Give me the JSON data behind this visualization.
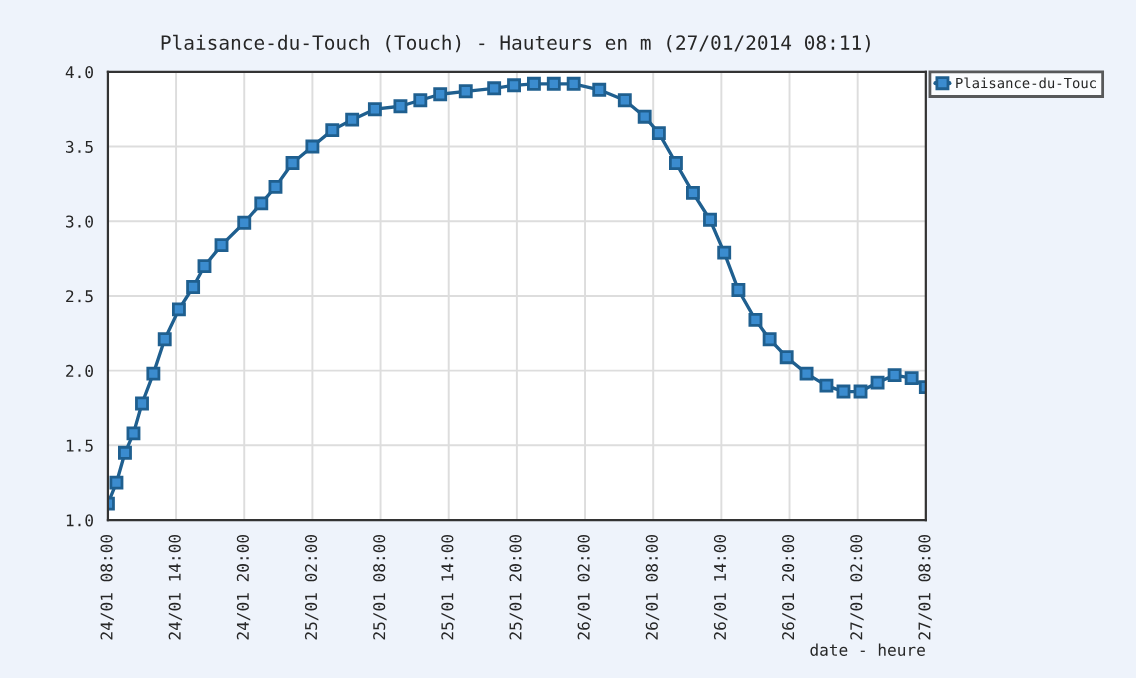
{
  "chart_data": {
    "type": "line",
    "title": "Plaisance-du-Touch (Touch) - Hauteurs en m (27/01/2014 08:11)",
    "xlabel": "date - heure",
    "x": [
      "2014-01-24T08:00",
      "2014-01-24T08:45",
      "2014-01-24T09:30",
      "2014-01-24T10:15",
      "2014-01-24T11:00",
      "2014-01-24T12:00",
      "2014-01-24T13:00",
      "2014-01-24T14:15",
      "2014-01-24T15:30",
      "2014-01-24T16:30",
      "2014-01-24T18:00",
      "2014-01-24T20:00",
      "2014-01-24T21:30",
      "2014-01-24T22:45",
      "2014-01-25T00:15",
      "2014-01-25T02:00",
      "2014-01-25T03:45",
      "2014-01-25T05:30",
      "2014-01-25T07:30",
      "2014-01-25T09:45",
      "2014-01-25T11:30",
      "2014-01-25T13:15",
      "2014-01-25T15:30",
      "2014-01-25T18:00",
      "2014-01-25T19:45",
      "2014-01-25T21:30",
      "2014-01-25T23:15",
      "2014-01-26T01:00",
      "2014-01-26T03:15",
      "2014-01-26T05:30",
      "2014-01-26T07:15",
      "2014-01-26T08:30",
      "2014-01-26T10:00",
      "2014-01-26T11:30",
      "2014-01-26T13:00",
      "2014-01-26T14:15",
      "2014-01-26T15:30",
      "2014-01-26T17:00",
      "2014-01-26T18:15",
      "2014-01-26T19:45",
      "2014-01-26T21:30",
      "2014-01-26T23:15",
      "2014-01-27T00:45",
      "2014-01-27T02:15",
      "2014-01-27T03:45",
      "2014-01-27T05:15",
      "2014-01-27T06:45",
      "2014-01-27T08:00"
    ],
    "series": [
      {
        "name": "Plaisance-du-Touc",
        "color": "#1f5f8f",
        "values": [
          1.11,
          1.25,
          1.45,
          1.58,
          1.78,
          1.98,
          2.21,
          2.41,
          2.56,
          2.7,
          2.84,
          2.99,
          3.12,
          3.23,
          3.39,
          3.5,
          3.61,
          3.68,
          3.75,
          3.77,
          3.81,
          3.85,
          3.87,
          3.89,
          3.91,
          3.92,
          3.92,
          3.92,
          3.88,
          3.81,
          3.7,
          3.59,
          3.39,
          3.19,
          3.01,
          2.79,
          2.54,
          2.34,
          2.21,
          2.09,
          1.98,
          1.9,
          1.86,
          1.86,
          1.92,
          1.97,
          1.95,
          1.89
        ]
      }
    ],
    "xlim": [
      "2014-01-24T08:00",
      "2014-01-27T08:00"
    ],
    "xticks": [
      {
        "value": "2014-01-24T08:00",
        "label": "24/01 08:00"
      },
      {
        "value": "2014-01-24T14:00",
        "label": "24/01 14:00"
      },
      {
        "value": "2014-01-24T20:00",
        "label": "24/01 20:00"
      },
      {
        "value": "2014-01-25T02:00",
        "label": "25/01 02:00"
      },
      {
        "value": "2014-01-25T08:00",
        "label": "25/01 08:00"
      },
      {
        "value": "2014-01-25T14:00",
        "label": "25/01 14:00"
      },
      {
        "value": "2014-01-25T20:00",
        "label": "25/01 20:00"
      },
      {
        "value": "2014-01-26T02:00",
        "label": "26/01 02:00"
      },
      {
        "value": "2014-01-26T08:00",
        "label": "26/01 08:00"
      },
      {
        "value": "2014-01-26T14:00",
        "label": "26/01 14:00"
      },
      {
        "value": "2014-01-26T20:00",
        "label": "26/01 20:00"
      },
      {
        "value": "2014-01-27T02:00",
        "label": "27/01 02:00"
      },
      {
        "value": "2014-01-27T08:00",
        "label": "27/01 08:00"
      }
    ],
    "ylim": [
      1.0,
      4.0
    ],
    "yticks": [
      {
        "value": 1.0,
        "label": "1.0"
      },
      {
        "value": 1.5,
        "label": "1.5"
      },
      {
        "value": 2.0,
        "label": "2.0"
      },
      {
        "value": 2.5,
        "label": "2.5"
      },
      {
        "value": 3.0,
        "label": "3.0"
      },
      {
        "value": 3.5,
        "label": "3.5"
      },
      {
        "value": 4.0,
        "label": "4.0"
      }
    ],
    "grid": true,
    "legend": "top right",
    "marker": "square",
    "line_style": "solid"
  }
}
